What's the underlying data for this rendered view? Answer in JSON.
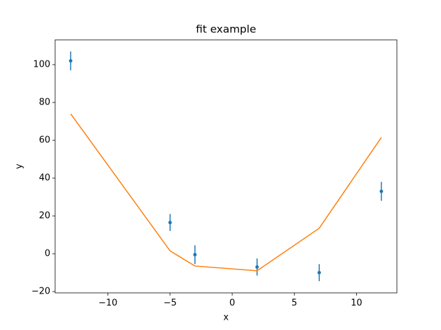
{
  "chart_data": {
    "type": "errorbar",
    "title": "fit example",
    "x_label": "x",
    "y_label": "y",
    "x": [
      -13,
      -5,
      -3,
      2,
      7,
      12
    ],
    "series": [
      {
        "kind": "errorbar",
        "color": "#1f77b4",
        "values": [
          102,
          16.5,
          -0.5,
          -7,
          -10,
          33
        ],
        "errors": [
          5,
          4.5,
          5,
          4.5,
          4.5,
          5
        ]
      },
      {
        "kind": "line",
        "color": "#ff7f0e",
        "values": [
          74,
          1.5,
          -6.5,
          -9,
          13.5,
          61.5
        ]
      }
    ],
    "xlim": [
      -14.25,
      13.25
    ],
    "ylim": [
      -20.7,
      113.1
    ],
    "xticks": [
      {
        "value": -10,
        "label": "−10"
      },
      {
        "value": -5,
        "label": "−5"
      },
      0,
      5,
      10
    ],
    "yticks": [
      {
        "value": -20,
        "label": "−20"
      },
      0,
      20,
      40,
      60,
      80,
      100
    ]
  }
}
